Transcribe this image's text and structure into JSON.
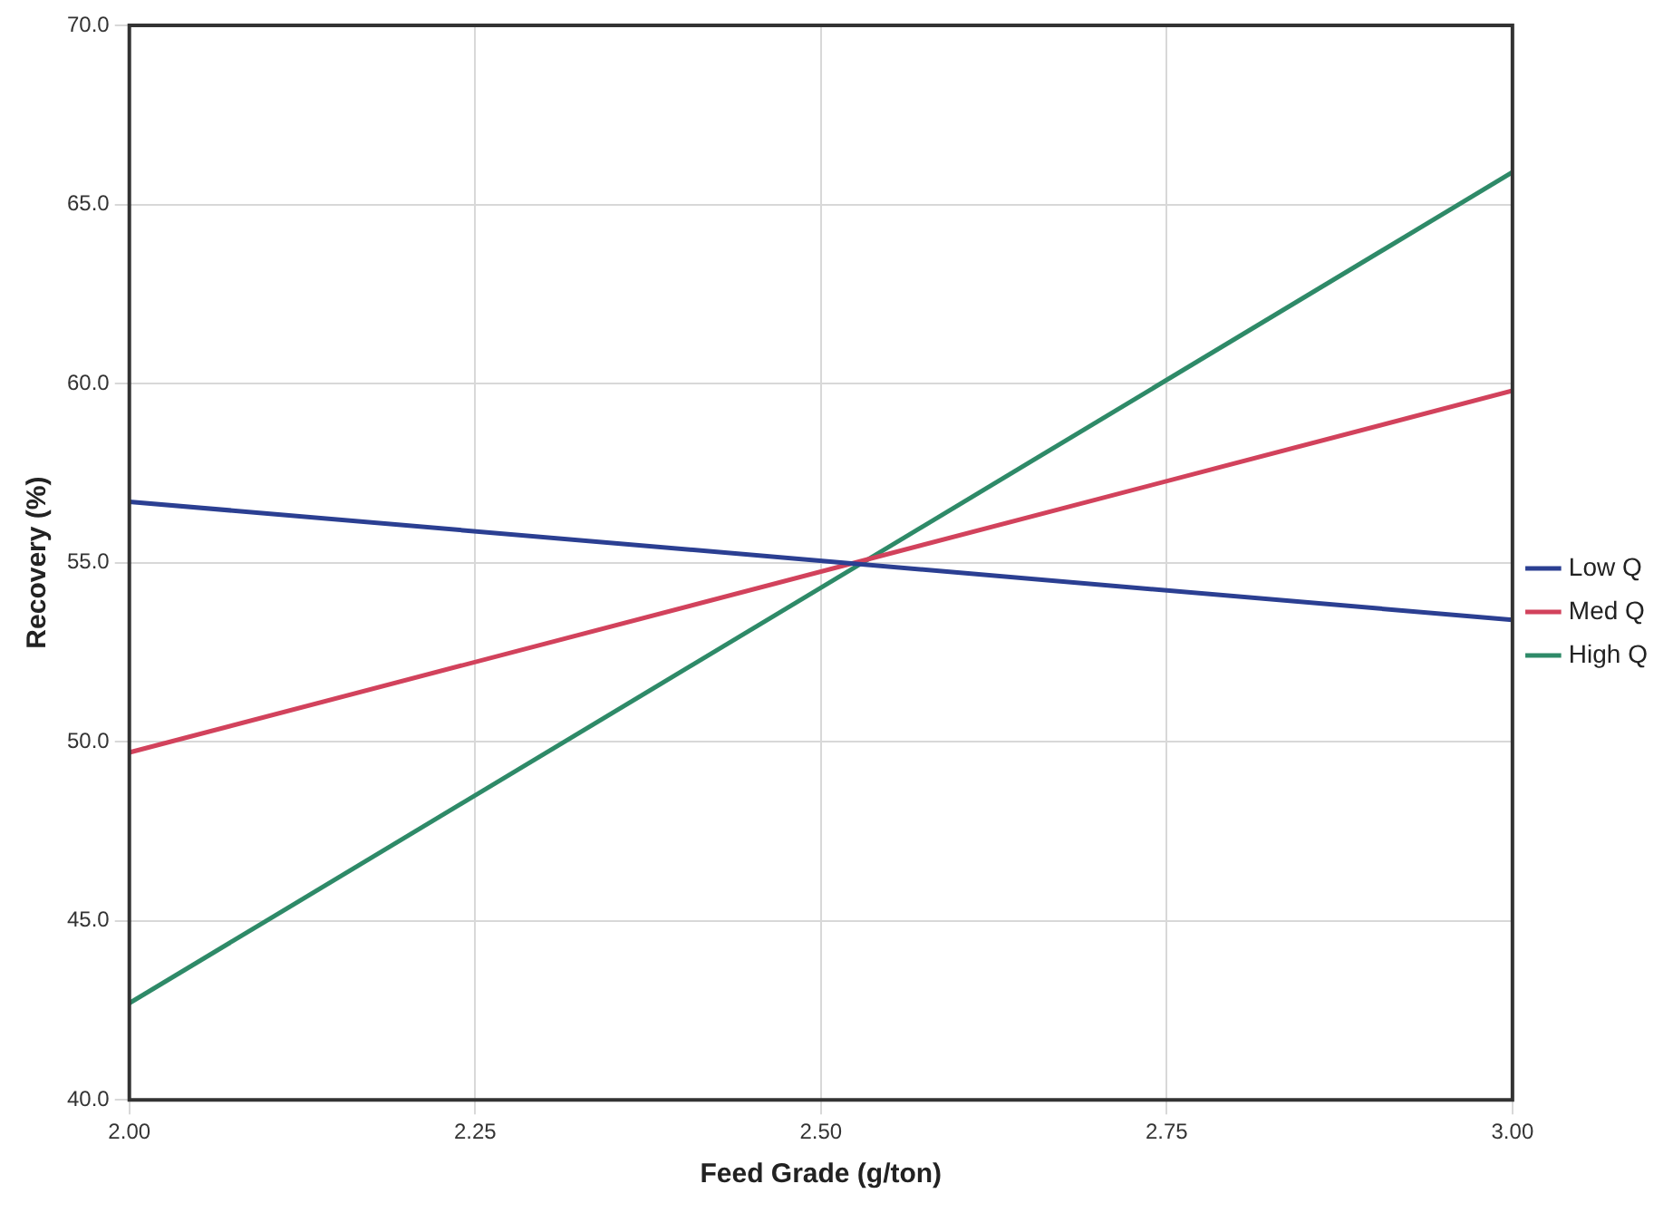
{
  "chart_data": {
    "type": "line",
    "xlabel": "Feed Grade (g/ton)",
    "ylabel": "Recovery (%)",
    "x": [
      2.0,
      3.0
    ],
    "series": [
      {
        "name": "Low Q",
        "color": "#2b3f92",
        "values": [
          56.7,
          53.4
        ]
      },
      {
        "name": "Med Q",
        "color": "#d2425c",
        "values": [
          49.7,
          59.8
        ]
      },
      {
        "name": "High Q",
        "color": "#2e8a68",
        "values": [
          42.7,
          65.9
        ]
      }
    ],
    "xlim": [
      2.0,
      3.0
    ],
    "xticks": [
      {
        "value": 2.0,
        "label": "2.00"
      },
      {
        "value": 2.25,
        "label": "2.25"
      },
      {
        "value": 2.5,
        "label": "2.50"
      },
      {
        "value": 2.75,
        "label": "2.75"
      },
      {
        "value": 3.0,
        "label": "3.00"
      }
    ],
    "ylim": [
      40,
      70
    ],
    "yticks": [
      {
        "value": 40,
        "label": "40.0"
      },
      {
        "value": 45,
        "label": "45.0"
      },
      {
        "value": 50,
        "label": "50.0"
      },
      {
        "value": 55,
        "label": "55.0"
      },
      {
        "value": 60,
        "label": "60.0"
      },
      {
        "value": 65,
        "label": "65.0"
      },
      {
        "value": 70,
        "label": "70.0"
      }
    ],
    "grid": true,
    "legend": "right",
    "marker": "none",
    "line_style": "solid"
  }
}
